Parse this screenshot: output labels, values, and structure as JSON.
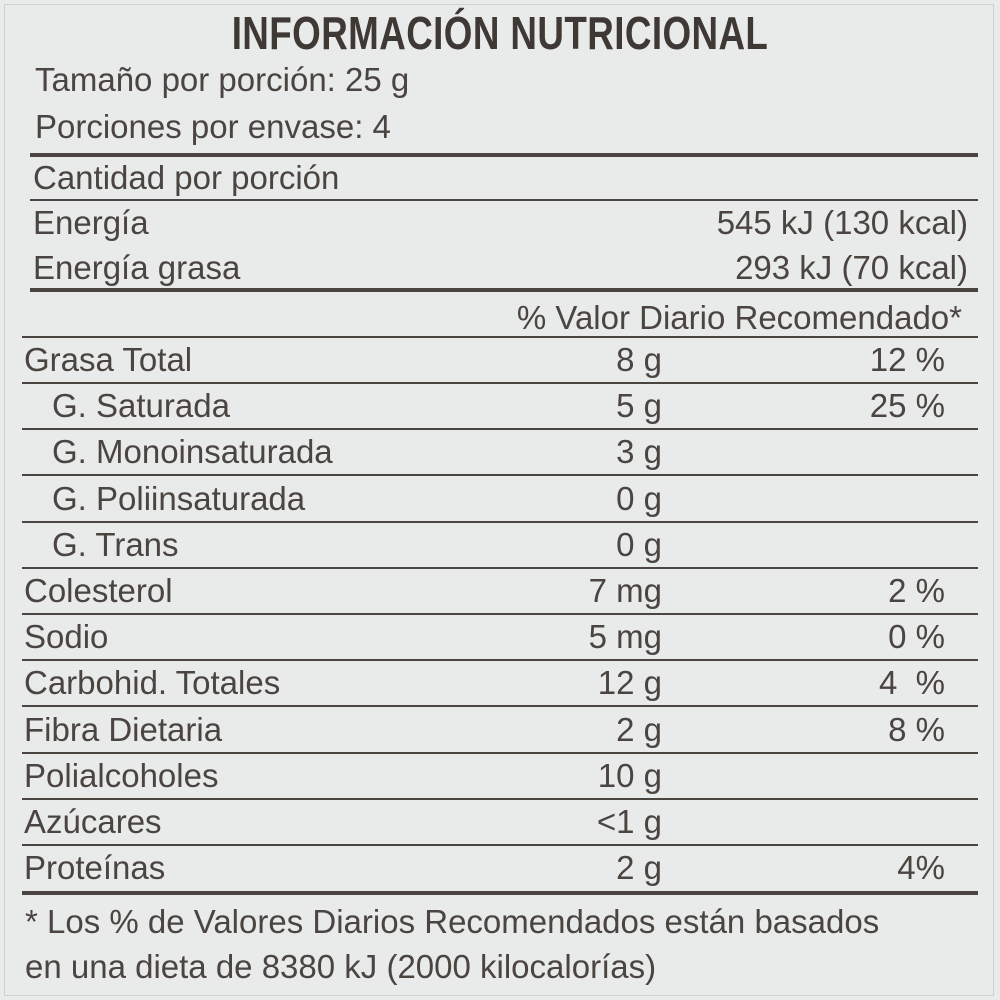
{
  "title": "INFORMACIÓN NUTRICIONAL",
  "serving_size": "Tamaño por porción: 25 g",
  "servings_per_container": "Porciones por envase: 4",
  "amount_per_serving": "Cantidad por porción",
  "energy": {
    "label": "Energía",
    "value": "545 kJ (130 kcal)"
  },
  "energy_fat": {
    "label": "Energía grasa",
    "value": "293 kJ (70 kcal)"
  },
  "dv_header": "% Valor Diario Recomendado*",
  "nutrients": [
    {
      "label": "Grasa Total",
      "amount": "8 g",
      "dv": "12 %",
      "indent": false
    },
    {
      "label": "G. Saturada",
      "amount": "5 g",
      "dv": "25 %",
      "indent": true
    },
    {
      "label": "G. Monoinsaturada",
      "amount": "3 g",
      "dv": "",
      "indent": true
    },
    {
      "label": "G. Poliinsaturada",
      "amount": "0 g",
      "dv": "",
      "indent": true
    },
    {
      "label": "G. Trans",
      "amount": "0 g",
      "dv": "",
      "indent": true
    },
    {
      "label": "Colesterol",
      "amount": "7 mg",
      "dv": "2 %",
      "indent": false
    },
    {
      "label": "Sodio",
      "amount": "5 mg",
      "dv": "0 %",
      "indent": false
    },
    {
      "label": "Carbohid. Totales",
      "amount": "12 g",
      "dv": "4  %",
      "indent": false
    },
    {
      "label": "Fibra Dietaria",
      "amount": "2 g",
      "dv": "8 %",
      "indent": false
    },
    {
      "label": "Polialcoholes",
      "amount": "10 g",
      "dv": "",
      "indent": false
    },
    {
      "label": "Azúcares",
      "amount": "<1 g",
      "dv": "",
      "indent": false
    },
    {
      "label": "Proteínas",
      "amount": "2 g",
      "dv": "4%",
      "indent": false
    }
  ],
  "footnote_1": "* Los % de Valores Diarios Recomendados están basados",
  "footnote_2": "en una dieta de 8380 kJ (2000 kilocalorías)"
}
